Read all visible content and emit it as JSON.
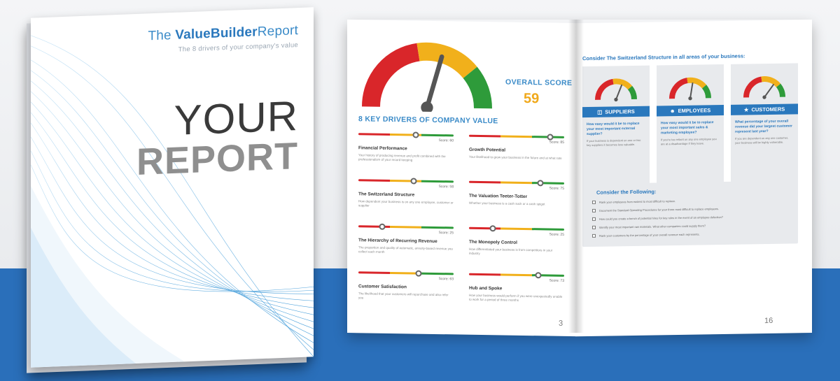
{
  "cover": {
    "title_light": "The",
    "title_bold": "ValueBuilder",
    "title_end": "Report",
    "subtitle": "The 8 drivers of your company's value",
    "line1": "YOUR",
    "line2": "REPORT"
  },
  "left_page": {
    "overall_label": "OVERALL SCORE",
    "overall_score": "59",
    "overall_value": 59,
    "drivers_heading": "8 KEY DRIVERS OF COMPANY VALUE",
    "drivers": [
      {
        "name": "Financial Performance",
        "score_label": "Score: 60",
        "score": 60,
        "desc": "Your history of producing revenue and profit combined with the professionalism of your record keeping"
      },
      {
        "name": "Growth Potential",
        "score_label": "Score: 85",
        "score": 85,
        "desc": "Your likelihood to grow your business in the future and at what rate"
      },
      {
        "name": "The Switzerland Structure",
        "score_label": "Score: 58",
        "score": 58,
        "desc": "How dependent your business is on any one employee, customer or supplier"
      },
      {
        "name": "The Valuation Teeter-Totter",
        "score_label": "Score: 75",
        "score": 75,
        "desc": "Whether your business is a cash suck or a cash spigot"
      },
      {
        "name": "The Hierarchy of Recurring Revenue",
        "score_label": "Score: 25",
        "score": 25,
        "desc": "The proportion and quality of automatic, annuity-based revenue you collect each month"
      },
      {
        "name": "The Monopoly Control",
        "score_label": "Score: 25",
        "score": 25,
        "desc": "How differentiated your business is from competitors in your industry"
      },
      {
        "name": "Customer Satisfaction",
        "score_label": "Score: 63",
        "score": 63,
        "desc": "The likelihood that your customers will repurchase and also refer you"
      },
      {
        "name": "Hub and Spoke",
        "score_label": "Score: 73",
        "score": 73,
        "desc": "How your business would perform if you were unexpectedly unable to work for a period of three months"
      }
    ],
    "page_number": "3"
  },
  "right_page": {
    "title": "Consider The Switzerland Structure in all areas of your business:",
    "columns": [
      {
        "tab": "SUPPLIERS",
        "icon": "truck-icon",
        "gauge": 0.62,
        "question": "How easy would it be to replace your most important external supplier?",
        "text": "If your business is dependent on one or two key suppliers it becomes less valuable."
      },
      {
        "tab": "EMPLOYEES",
        "icon": "people-icon",
        "gauge": 0.55,
        "question": "How easy would it be to replace your most important sales & marketing employee?",
        "text": "If you're too reliant on any one employee you are at a disadvantage if they leave."
      },
      {
        "tab": "CUSTOMERS",
        "icon": "shield-icon",
        "gauge": 0.7,
        "question": "What percentage of your overall revenue did your largest customer represent last year?",
        "text": "If you are dependent on any one customer, your business will be highly vulnerable."
      }
    ],
    "consider_heading": "Consider the Following:",
    "consider_items": [
      "Rank your employees from easiest to most difficult to replace.",
      "Document the Standard Operating Procedures for your three most difficult to replace employees.",
      "How could you create a bench of potential hires for key roles in the event of an employee defection?",
      "Identify your most important raw materials. What other companies could supply them?",
      "Rank your customers by the percentage of your overall revenue each represents."
    ],
    "page_number": "16"
  },
  "colors": {
    "brand_blue": "#2a78bd",
    "score_orange": "#f0a91c",
    "gauge_red": "#d9262a",
    "gauge_yellow": "#f1b01b",
    "gauge_green": "#2e9b3a",
    "floor_blue": "#2a6fba"
  }
}
